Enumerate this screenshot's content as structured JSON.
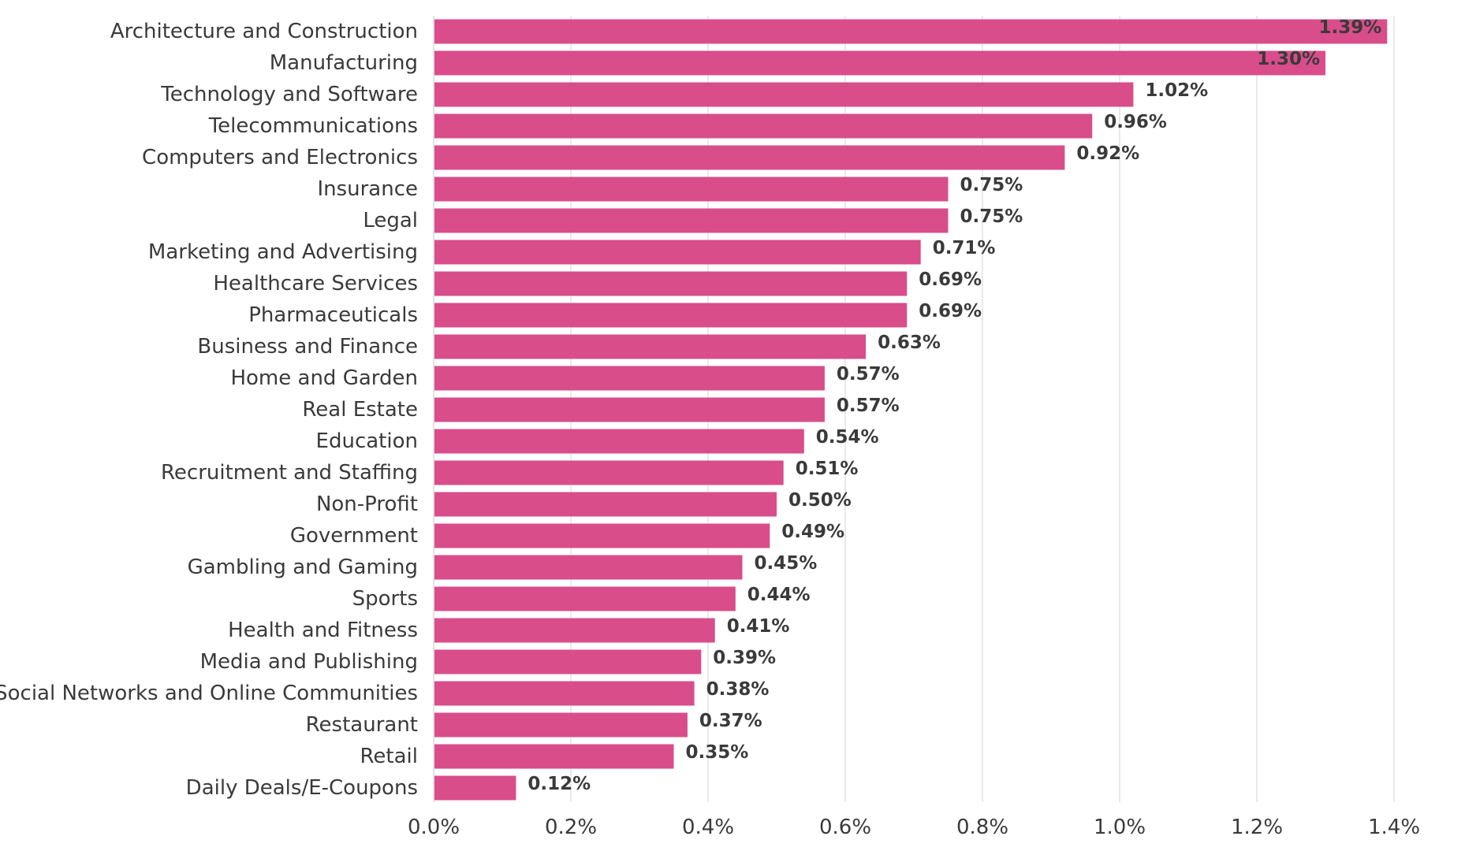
{
  "chart_data": {
    "type": "bar",
    "orientation": "horizontal",
    "categories": [
      "Architecture and Construction",
      "Manufacturing",
      "Technology and Software",
      "Telecommunications",
      "Computers and Electronics",
      "Insurance",
      "Legal",
      "Marketing and Advertising",
      "Healthcare Services",
      "Pharmaceuticals",
      "Business and Finance",
      "Home and Garden",
      "Real Estate",
      "Education",
      "Recruitment and Staffing",
      "Non-Profit",
      "Government",
      "Gambling and Gaming",
      "Sports",
      "Health and Fitness",
      "Media and Publishing",
      "Social Networks and Online Communities",
      "Restaurant",
      "Retail",
      "Daily Deals/E-Coupons"
    ],
    "values": [
      1.39,
      1.3,
      1.02,
      0.96,
      0.92,
      0.75,
      0.75,
      0.71,
      0.69,
      0.69,
      0.63,
      0.57,
      0.57,
      0.54,
      0.51,
      0.5,
      0.49,
      0.45,
      0.44,
      0.41,
      0.39,
      0.38,
      0.37,
      0.35,
      0.12
    ],
    "data_labels": [
      "1.39%",
      "1.30%",
      "1.02%",
      "0.96%",
      "0.92%",
      "0.75%",
      "0.75%",
      "0.71%",
      "0.69%",
      "0.69%",
      "0.63%",
      "0.57%",
      "0.57%",
      "0.54%",
      "0.51%",
      "0.50%",
      "0.49%",
      "0.45%",
      "0.44%",
      "0.41%",
      "0.39%",
      "0.38%",
      "0.37%",
      "0.35%",
      "0.12%"
    ],
    "x_ticks": [
      "0.0%",
      "0.2%",
      "0.4%",
      "0.6%",
      "0.8%",
      "1.0%",
      "1.2%",
      "1.4%"
    ],
    "x_tick_values": [
      0,
      0.2,
      0.4,
      0.6,
      0.8,
      1.0,
      1.2,
      1.4
    ],
    "xlim": [
      0,
      1.4
    ],
    "title": "",
    "xlabel": "",
    "ylabel": "",
    "grid": "vertical",
    "legend": "none",
    "bar_color": "#d94d8b",
    "text_color": "#3a3a3a",
    "grid_color": "#e2e2e2"
  }
}
